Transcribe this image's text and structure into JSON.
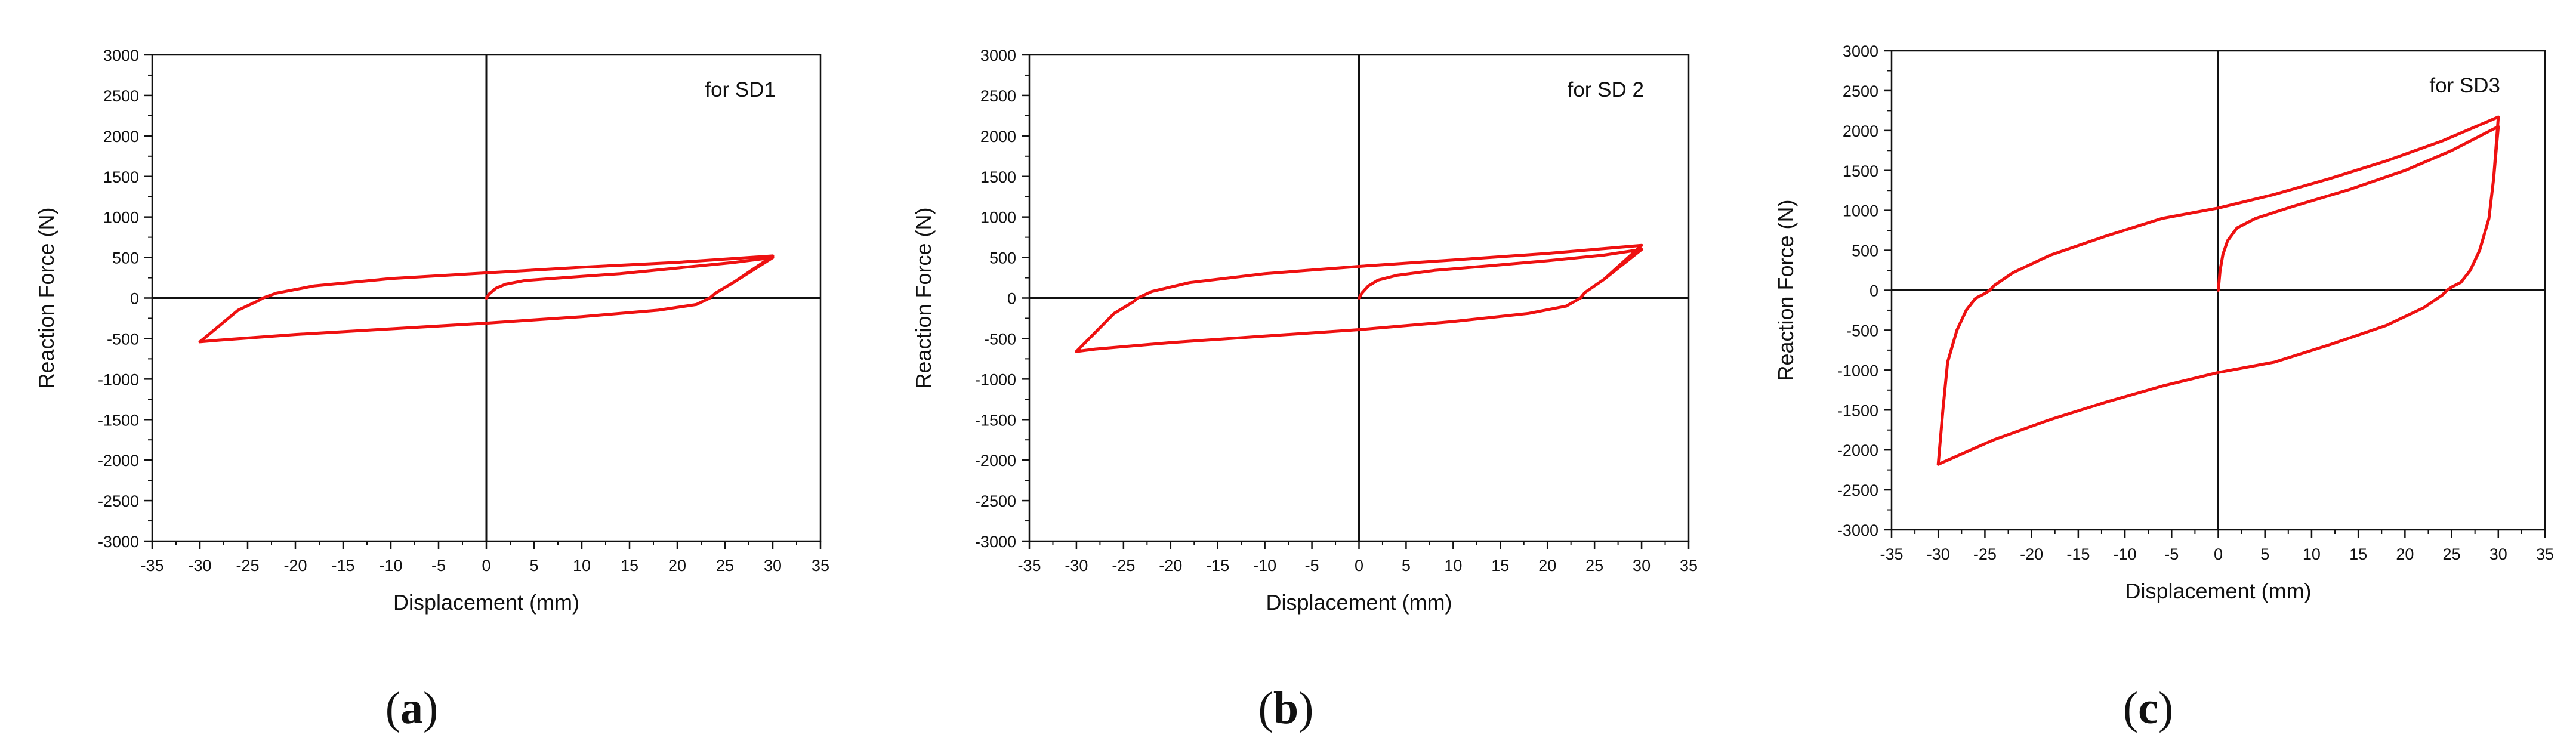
{
  "figure": {
    "panel_labels": [
      "a",
      "b",
      "c"
    ]
  },
  "chart_data": [
    {
      "panel": "a",
      "type": "line",
      "annotation": "for SD1",
      "xlabel": "Displacement (mm)",
      "ylabel": "Reaction Force (N)",
      "xlim": [
        -35,
        35
      ],
      "ylim": [
        -3000,
        3000
      ],
      "xticks": [
        -35,
        -30,
        -25,
        -20,
        -15,
        -10,
        -5,
        0,
        5,
        10,
        15,
        20,
        25,
        30,
        35
      ],
      "yticks": [
        -3000,
        -2500,
        -2000,
        -1500,
        -1000,
        -500,
        0,
        500,
        1000,
        1500,
        2000,
        2500,
        3000
      ],
      "grid": false,
      "line_color": "#ee1111",
      "x": [
        0,
        0.3,
        1,
        2,
        4,
        8,
        14,
        20,
        26,
        30,
        26,
        24,
        23.4,
        22,
        18,
        10,
        0,
        -10,
        -20,
        -28,
        -30,
        -26,
        -24,
        -23.4,
        -22,
        -18,
        -10,
        0,
        10,
        20,
        30,
        26,
        24,
        23.4,
        22,
        18,
        10,
        0,
        -10,
        -20,
        -28,
        -30
      ],
      "y": [
        0,
        50,
        120,
        170,
        215,
        250,
        300,
        370,
        440,
        500,
        200,
        60,
        0,
        -80,
        -150,
        -230,
        -310,
        -380,
        -450,
        -520,
        -540,
        -150,
        -40,
        0,
        60,
        150,
        240,
        310,
        380,
        440,
        520,
        200,
        60,
        0,
        -80,
        -150,
        -230,
        -310,
        -380,
        -450,
        -520,
        -540
      ]
    },
    {
      "panel": "b",
      "type": "line",
      "annotation": "for SD 2",
      "xlabel": "Displacement (mm)",
      "ylabel": "Reaction Force (N)",
      "xlim": [
        -35,
        35
      ],
      "ylim": [
        -3000,
        3000
      ],
      "xticks": [
        -35,
        -30,
        -25,
        -20,
        -15,
        -10,
        -5,
        0,
        5,
        10,
        15,
        20,
        25,
        30,
        35
      ],
      "yticks": [
        -3000,
        -2500,
        -2000,
        -1500,
        -1000,
        -500,
        0,
        500,
        1000,
        1500,
        2000,
        2500,
        3000
      ],
      "grid": false,
      "line_color": "#ee1111",
      "x": [
        0,
        0.3,
        1,
        2,
        4,
        8,
        14,
        20,
        26,
        30,
        26,
        24,
        23.5,
        22,
        18,
        10,
        0,
        -10,
        -20,
        -28,
        -30,
        -26,
        -24,
        -23.5,
        -22,
        -18,
        -10,
        0,
        10,
        20,
        30,
        26,
        24,
        23.5,
        22,
        18,
        10,
        0,
        -10,
        -20,
        -28,
        -30
      ],
      "y": [
        0,
        60,
        150,
        220,
        280,
        340,
        400,
        460,
        530,
        600,
        230,
        70,
        0,
        -100,
        -190,
        -290,
        -390,
        -470,
        -550,
        -630,
        -660,
        -190,
        -50,
        0,
        80,
        190,
        300,
        390,
        470,
        550,
        650,
        230,
        70,
        0,
        -100,
        -190,
        -290,
        -390,
        -470,
        -550,
        -630,
        -660
      ]
    },
    {
      "panel": "c",
      "type": "line",
      "annotation": "for SD3",
      "xlabel": "Displacement (mm)",
      "ylabel": "Reaction Force (N)",
      "xlim": [
        -35,
        35
      ],
      "ylim": [
        -3000,
        3000
      ],
      "xticks": [
        -35,
        -30,
        -25,
        -20,
        -15,
        -10,
        -5,
        0,
        5,
        10,
        15,
        20,
        25,
        30,
        35
      ],
      "yticks": [
        -3000,
        -2500,
        -2000,
        -1500,
        -1000,
        -500,
        0,
        500,
        1000,
        1500,
        2000,
        2500,
        3000
      ],
      "grid": false,
      "line_color": "#ee1111",
      "x": [
        0,
        0.2,
        0.5,
        1,
        2,
        4,
        8,
        14,
        20,
        25,
        30,
        29.5,
        29,
        28,
        27,
        26,
        25,
        24.5,
        24,
        22,
        18,
        12,
        6,
        0,
        -6,
        -12,
        -18,
        -24,
        -30,
        -29.5,
        -29,
        -28,
        -27,
        -26,
        -25,
        -24.5,
        -24,
        -22,
        -18,
        -12,
        -6,
        0,
        6,
        12,
        18,
        24,
        30,
        29.5,
        29,
        28,
        27,
        26,
        25,
        24.5,
        24,
        22,
        18,
        12,
        6,
        0,
        -6,
        -12,
        -18,
        -24,
        -30
      ],
      "y": [
        0,
        250,
        450,
        620,
        780,
        900,
        1050,
        1260,
        1500,
        1750,
        2050,
        1400,
        900,
        500,
        250,
        100,
        40,
        0,
        -60,
        -220,
        -440,
        -680,
        -900,
        -1030,
        -1200,
        -1400,
        -1620,
        -1870,
        -2180,
        -1500,
        -900,
        -500,
        -250,
        -100,
        -40,
        0,
        60,
        220,
        440,
        680,
        900,
        1030,
        1200,
        1400,
        1620,
        1870,
        2170,
        1400,
        900,
        500,
        250,
        100,
        40,
        0,
        -60,
        -220,
        -440,
        -680,
        -900,
        -1030,
        -1200,
        -1400,
        -1620,
        -1870,
        -2180
      ]
    }
  ]
}
